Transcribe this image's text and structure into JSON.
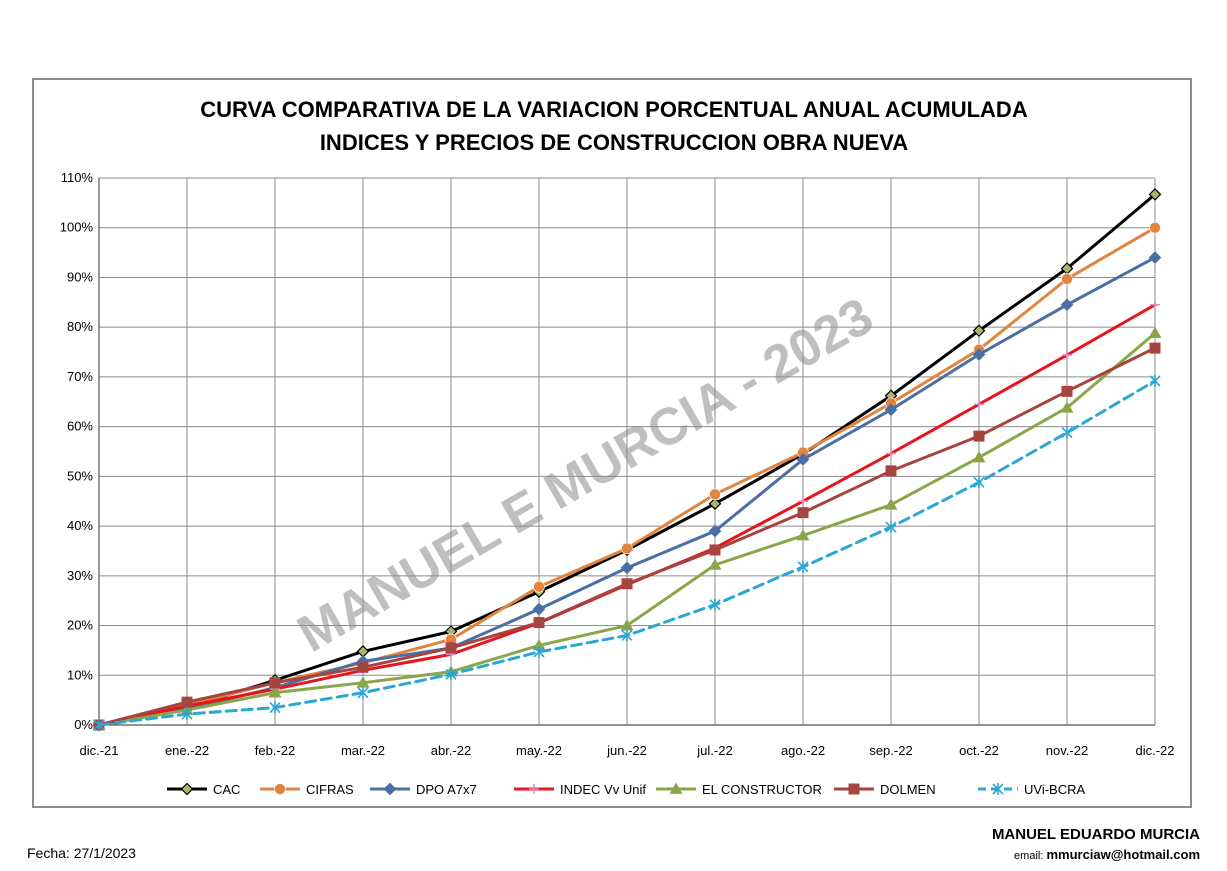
{
  "chart_data": {
    "type": "line",
    "title": "CURVA COMPARATIVA DE LA VARIACION PORCENTUAL ANUAL ACUMULADA",
    "subtitle": "INDICES Y PRECIOS DE CONSTRUCCION OBRA NUEVA",
    "categories": [
      "dic.-21",
      "ene.-22",
      "feb.-22",
      "mar.-22",
      "abr.-22",
      "may.-22",
      "jun.-22",
      "jul.-22",
      "ago.-22",
      "sep.-22",
      "oct.-22",
      "nov.-22",
      "dic.-22"
    ],
    "ylim": [
      0,
      110
    ],
    "yticks": [
      "0%",
      "10%",
      "20%",
      "30%",
      "40%",
      "50%",
      "60%",
      "70%",
      "80%",
      "90%",
      "100%",
      "110%"
    ],
    "grid": true,
    "legend_position": "bottom",
    "watermark": "MANUEL E MURCIA - 2023",
    "series": [
      {
        "name": "CAC",
        "color": "#000000",
        "marker": "diamond-olive",
        "dashed": false,
        "values": [
          0,
          3.5,
          9,
          14.8,
          18.8,
          26.8,
          35.2,
          44.5,
          54.5,
          66.2,
          79.3,
          91.8,
          106.7
        ]
      },
      {
        "name": "CIFRAS",
        "color": "#e0843f",
        "marker": "circle",
        "dashed": false,
        "values": [
          0,
          4,
          8.5,
          12.5,
          17.2,
          27.8,
          35.5,
          46.4,
          54.8,
          64.7,
          75.5,
          89.7,
          100
        ]
      },
      {
        "name": "DPO A7x7",
        "color": "#4a6fa5",
        "marker": "diamond",
        "dashed": false,
        "values": [
          0,
          3.2,
          7.5,
          12.8,
          15.5,
          23.3,
          31.6,
          39,
          53.4,
          63.4,
          74.5,
          84.5,
          94
        ]
      },
      {
        "name": "INDEC Vv Unif",
        "color": "#e8141c",
        "marker": "plus",
        "dashed": false,
        "values": [
          0,
          3.8,
          7.2,
          11,
          14.2,
          20.5,
          28.2,
          35.6,
          45,
          54.6,
          64.5,
          74.4,
          84.5
        ]
      },
      {
        "name": "EL CONSTRUCTOR",
        "color": "#8ba64a",
        "marker": "triangle",
        "dashed": false,
        "values": [
          0,
          3,
          6.5,
          8.5,
          10.7,
          16,
          20,
          32.2,
          38.1,
          44.3,
          53.8,
          63.8,
          78.8
        ]
      },
      {
        "name": "DOLMEN",
        "color": "#a6443f",
        "marker": "square",
        "dashed": false,
        "values": [
          0,
          4.6,
          8.5,
          11.6,
          15.5,
          20.6,
          28.4,
          35.2,
          42.7,
          51.1,
          58.1,
          67.1,
          75.8
        ]
      },
      {
        "name": "UVi-BCRA",
        "color": "#2aa7d4",
        "marker": "star",
        "dashed": true,
        "values": [
          0,
          2.2,
          3.5,
          6.5,
          10.2,
          14.7,
          18,
          24.2,
          31.8,
          39.8,
          48.8,
          58.8,
          69.2
        ]
      }
    ]
  },
  "footer": {
    "date": "Fecha: 27/1/2023",
    "author": "MANUEL EDUARDO MURCIA",
    "email_label": "email:",
    "email": "mmurciaw@hotmail.com"
  }
}
